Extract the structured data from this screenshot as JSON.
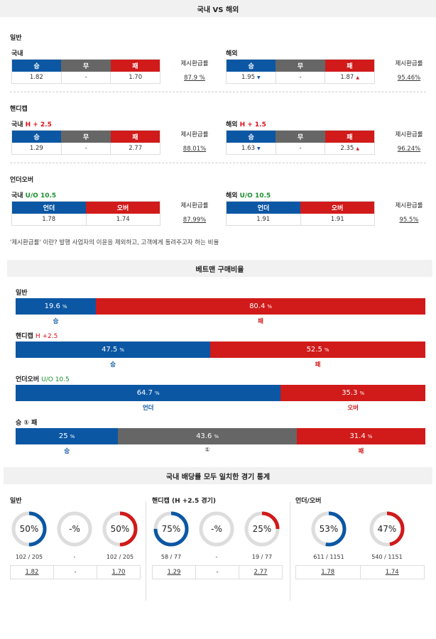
{
  "section1_title": "국내 VS 해외",
  "payout_label": "제시환급률",
  "groups": [
    {
      "label": "일반",
      "domestic": {
        "prefix": "국내",
        "tag": "",
        "headers": [
          "승",
          "무",
          "패"
        ],
        "values": [
          "1.82",
          "-",
          "1.70"
        ],
        "payout": "87.9 %"
      },
      "overseas": {
        "prefix": "해외",
        "tag": "",
        "headers": [
          "승",
          "무",
          "패"
        ],
        "values": [
          "1.95",
          "-",
          "1.87"
        ],
        "payout": "95.46%"
      }
    },
    {
      "label": "핸디캡",
      "domestic": {
        "prefix": "국내",
        "tag": "H + 2.5",
        "headers": [
          "승",
          "무",
          "패"
        ],
        "values": [
          "1.29",
          "-",
          "2.77"
        ],
        "payout": "88.01%"
      },
      "overseas": {
        "prefix": "해외",
        "tag": "H + 1.5",
        "headers": [
          "승",
          "무",
          "패"
        ],
        "values": [
          "1.63",
          "-",
          "2.35"
        ],
        "payout": "96.24%"
      }
    },
    {
      "label": "언더오버",
      "domestic": {
        "prefix": "국내",
        "tag": "U/O 10.5",
        "headers": [
          "언더",
          "오버"
        ],
        "values": [
          "1.78",
          "1.74"
        ],
        "payout": "87.99%"
      },
      "overseas": {
        "prefix": "해외",
        "tag": "U/O 10.5",
        "headers": [
          "언더",
          "오버"
        ],
        "values": [
          "1.91",
          "1.91"
        ],
        "payout": "95.5%"
      }
    }
  ],
  "note": "'제시환급률' 이란? 발행 사업자의 이윤을 제외하고, 고객에게 돌려주고자 하는 비율",
  "section2_title": "베트맨 구매비율",
  "betman": [
    {
      "label": "일반",
      "tag": "",
      "segments": [
        {
          "pct": 19.6,
          "text": "19.6",
          "label": "승",
          "color": "blue"
        },
        {
          "pct": 80.4,
          "text": "80.4",
          "label": "패",
          "color": "red"
        }
      ]
    },
    {
      "label": "핸디캡",
      "tag": "H +2.5",
      "segments": [
        {
          "pct": 47.5,
          "text": "47.5",
          "label": "승",
          "color": "blue"
        },
        {
          "pct": 52.5,
          "text": "52.5",
          "label": "패",
          "color": "red"
        }
      ]
    },
    {
      "label": "언더오버",
      "tag": "U/O 10.5",
      "segments": [
        {
          "pct": 64.7,
          "text": "64.7",
          "label": "언더",
          "color": "blue"
        },
        {
          "pct": 35.3,
          "text": "35.3",
          "label": "오버",
          "color": "red"
        }
      ]
    },
    {
      "label": "승 ① 패",
      "tag": "",
      "segments": [
        {
          "pct": 25,
          "text": "25",
          "label": "승",
          "color": "blue"
        },
        {
          "pct": 43.6,
          "text": "43.6",
          "label": "①",
          "color": "grey"
        },
        {
          "pct": 31.4,
          "text": "31.4",
          "label": "패",
          "color": "red"
        }
      ]
    }
  ],
  "pct_unit": "%",
  "section3_title": "국내 배당률 모두 일치한 경기 통계",
  "stats": [
    {
      "title": "일반",
      "circles": [
        {
          "text": "50%",
          "pct": 50,
          "color": "blue",
          "count": "102 / 205"
        },
        {
          "text": "-%",
          "pct": 0,
          "color": "grey",
          "count": "-"
        },
        {
          "text": "50%",
          "pct": 50,
          "color": "red",
          "count": "102 / 205"
        }
      ],
      "odds": [
        "1.82",
        "-",
        "1.70"
      ]
    },
    {
      "title": "핸디캡 (H +2.5 경기)",
      "circles": [
        {
          "text": "75%",
          "pct": 75,
          "color": "blue",
          "count": "58 / 77"
        },
        {
          "text": "-%",
          "pct": 0,
          "color": "grey",
          "count": "-"
        },
        {
          "text": "25%",
          "pct": 25,
          "color": "red",
          "count": "19 / 77"
        }
      ],
      "odds": [
        "1.29",
        "-",
        "2.77"
      ]
    },
    {
      "title": "언더/오버",
      "circles": [
        {
          "text": "53%",
          "pct": 53,
          "color": "blue",
          "count": "611 / 1151"
        },
        {
          "text": "47%",
          "pct": 47,
          "color": "red",
          "count": "540 / 1151"
        }
      ],
      "odds": [
        "1.78",
        "1.74"
      ]
    }
  ],
  "colors": {
    "blue": "#0b57a4",
    "red": "#d11a1a",
    "grey": "#666666",
    "ring_bg": "#dddddd"
  }
}
